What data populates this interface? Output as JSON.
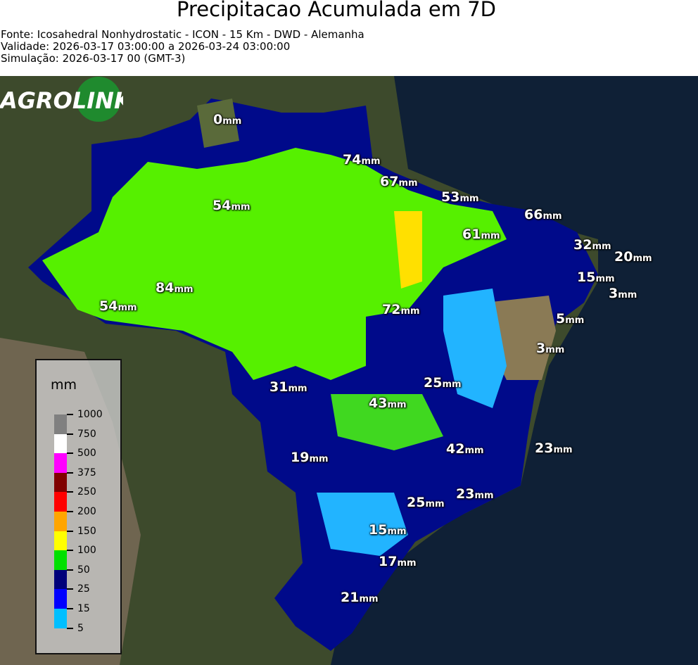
{
  "title": "Precipitacao Acumulada em 7D",
  "source": "Fonte: Icosahedral Nonhydrostatic - ICON - 15 Km - DWD - Alemanha",
  "validity": "Validade: 2026-03-17 03:00:00 a 2026-03-24 03:00:00",
  "simulation": "Simulação: 2026-03-17 00 (GMT-3)",
  "unit_suffix": "mm",
  "legend": {
    "unit": "mm",
    "ticks": [
      "1000",
      "750",
      "500",
      "375",
      "250",
      "200",
      "150",
      "100",
      "50",
      "25",
      "15",
      "5"
    ],
    "colors": [
      "#808080",
      "#ffffff",
      "#ff00ff",
      "#800000",
      "#ff0000",
      "#ffa500",
      "#ffff00",
      "#00e000",
      "#00007a",
      "#0000ff",
      "#00bfff"
    ]
  },
  "labels": [
    "0",
    "74",
    "67",
    "53",
    "66",
    "54",
    "61",
    "32",
    "20",
    "15",
    "3",
    "84",
    "54",
    "72",
    "5",
    "3",
    "31",
    "25",
    "43",
    "42",
    "23",
    "19",
    "25",
    "23",
    "15",
    "17",
    "21"
  ],
  "logo": {
    "text_agro": "AGRO",
    "text_link": "LINK"
  }
}
